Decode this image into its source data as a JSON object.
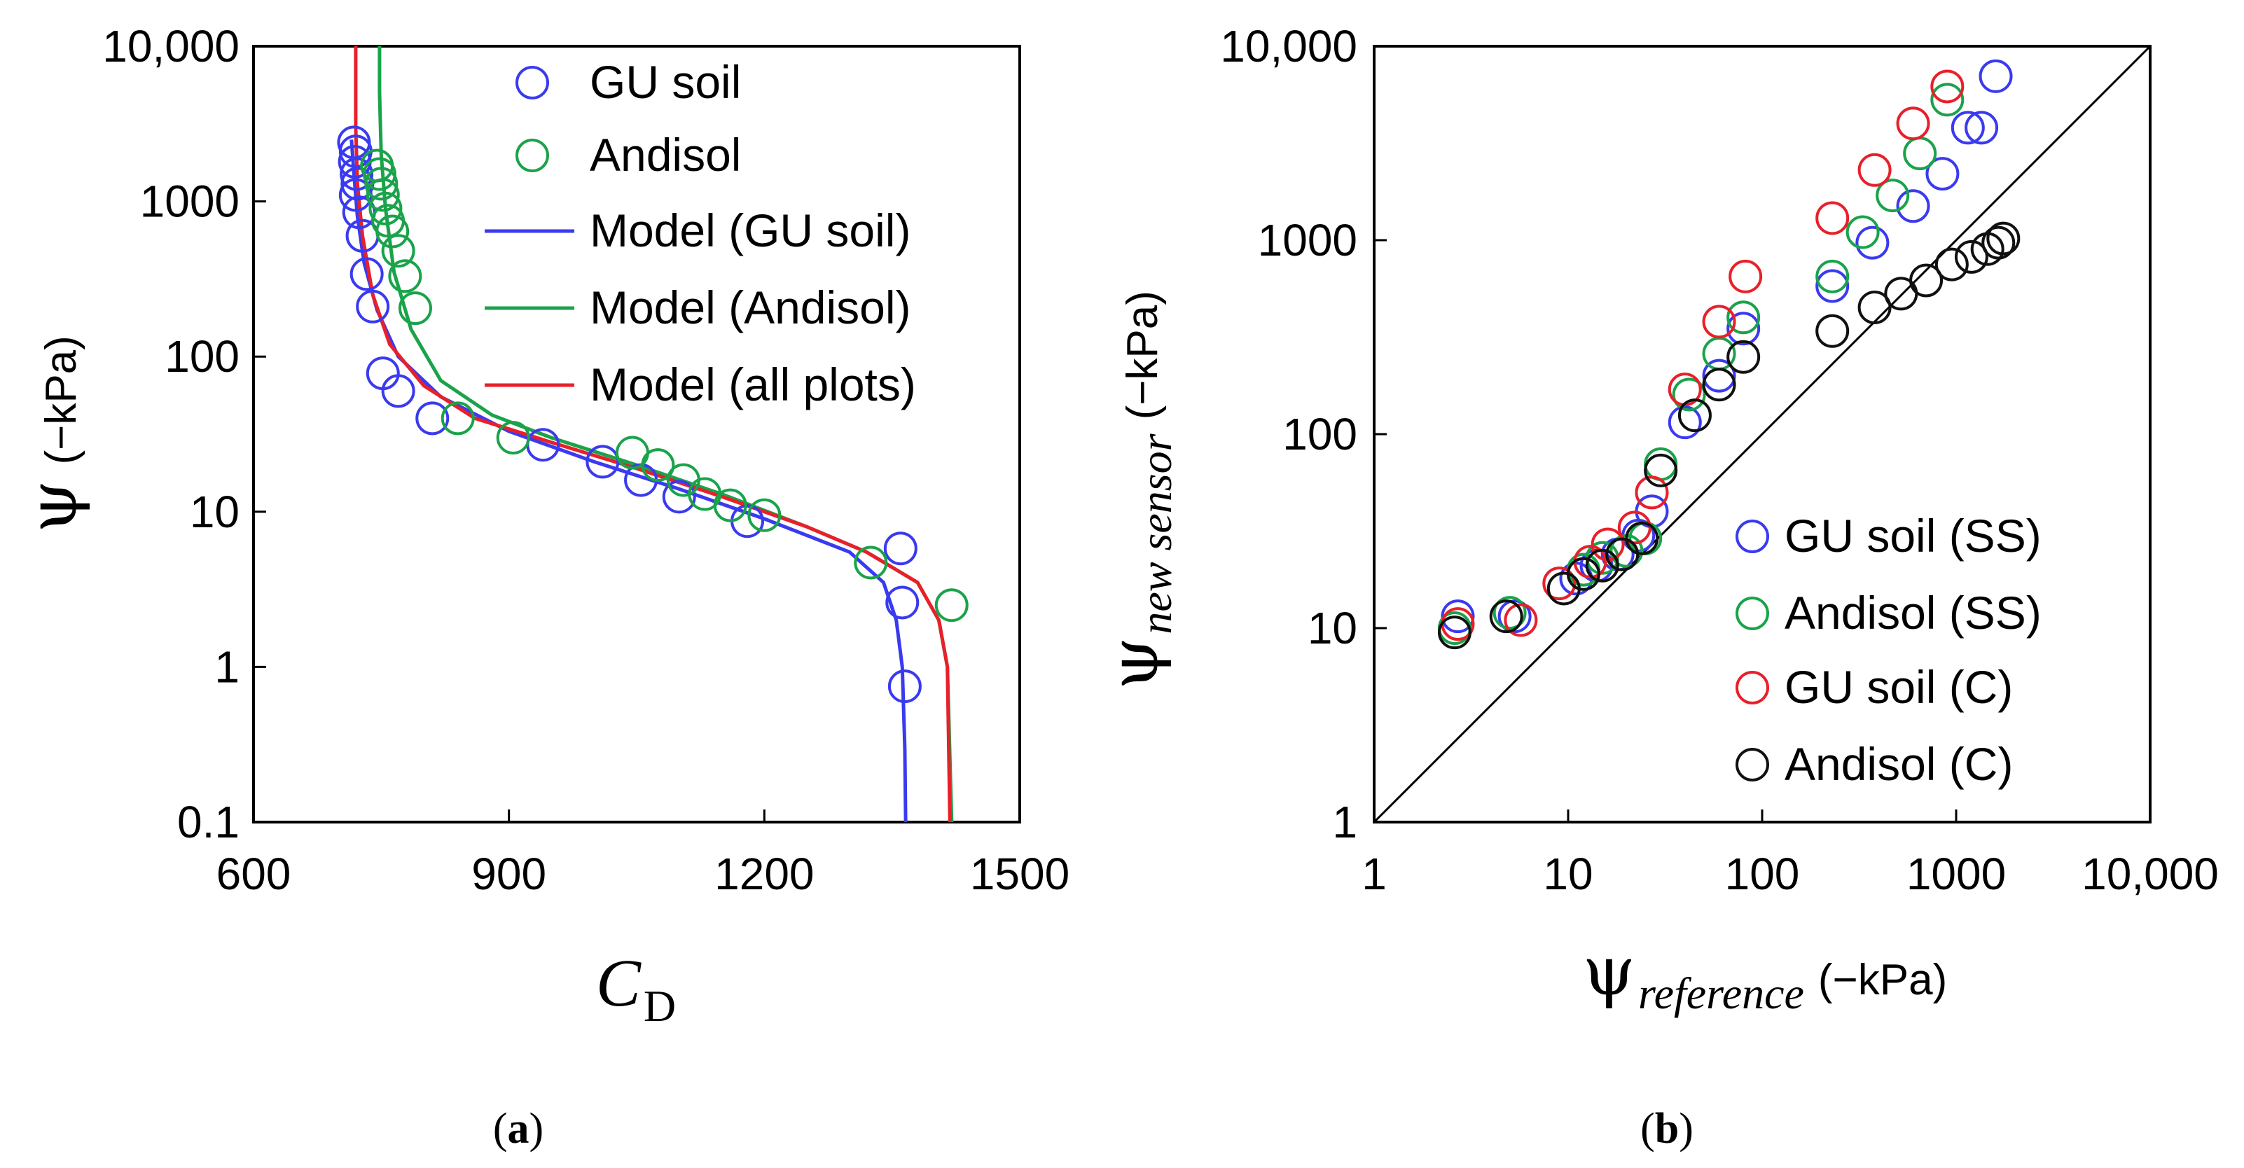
{
  "colors": {
    "blue": "#3a3af0",
    "green": "#1aa34a",
    "red": "#e8202a",
    "black": "#111111"
  },
  "panel_a": {
    "caption": {
      "open": "(",
      "letter": "a",
      "close": ")"
    },
    "xlabel": {
      "main": "C",
      "sub": "D"
    },
    "ylabel": {
      "symbol": "ψ",
      "unit": "(−kPa)"
    },
    "x_ticks": [
      600,
      900,
      1200,
      1500
    ],
    "x_tick_labels": [
      "600",
      "900",
      "1200",
      "1500"
    ],
    "y_ticks": [
      0.1,
      1,
      10,
      100,
      1000,
      10000
    ],
    "y_tick_labels": [
      "0.1",
      "1",
      "10",
      "100",
      "1000",
      "10,000"
    ],
    "legend": [
      "GU soil",
      "Andisol",
      "Model (GU soil)",
      "Model (Andisol)",
      "Model (all plots)"
    ]
  },
  "panel_b": {
    "caption": {
      "open": "(",
      "letter": "b",
      "close": ")"
    },
    "xlabel": {
      "symbol": "ψ",
      "sub": "reference",
      "unit": "(−kPa)"
    },
    "ylabel": {
      "symbol": "ψ",
      "sub": "new sensor",
      "unit": "(−kPa)"
    },
    "x_tick_labels": [
      "1",
      "10",
      "100",
      "1000",
      "10,000"
    ],
    "y_tick_labels": [
      "1",
      "10",
      "100",
      "1000",
      "10,000"
    ],
    "legend": [
      "GU soil (SS)",
      "Andisol (SS)",
      "GU soil (C)",
      "Andisol (C)"
    ]
  },
  "chart_data": [
    {
      "type": "scatter",
      "panel": "a",
      "xlabel": "C_D",
      "ylabel": "ψ (−kPa)",
      "xlim": [
        600,
        1500
      ],
      "ylim": [
        0.1,
        10000
      ],
      "yscale": "log",
      "series": [
        {
          "name": "GU soil",
          "kind": "scatter",
          "color": "blue",
          "x": [
            718,
            720,
            719,
            721,
            722,
            720,
            724,
            728,
            733,
            740,
            752,
            770,
            810,
            940,
            1010,
            1055,
            1100,
            1180,
            1360,
            1362,
            1365
          ],
          "y": [
            2400,
            2100,
            1800,
            1500,
            1300,
            1100,
            850,
            600,
            340,
            210,
            78,
            60,
            40,
            27,
            21,
            16,
            12.5,
            8.7,
            5.8,
            2.6,
            0.75
          ]
        },
        {
          "name": "Andisol",
          "kind": "scatter",
          "color": "green",
          "x": [
            745,
            748,
            750,
            752,
            755,
            758,
            763,
            770,
            778,
            790,
            840,
            905,
            1045,
            1075,
            1105,
            1130,
            1160,
            1200,
            1325,
            1420
          ],
          "y": [
            1700,
            1500,
            1300,
            1100,
            900,
            750,
            640,
            480,
            330,
            205,
            40,
            30,
            24,
            20,
            16,
            13,
            11,
            9.5,
            4.7,
            2.5
          ]
        },
        {
          "name": "Model (GU soil)",
          "kind": "line",
          "color": "blue",
          "x": [
            715,
            718,
            722,
            730,
            745,
            770,
            820,
            900,
            1000,
            1100,
            1200,
            1300,
            1340,
            1355,
            1362,
            1365,
            1366
          ],
          "y": [
            2500,
            1500,
            800,
            400,
            200,
            100,
            55,
            33,
            21,
            14,
            9,
            5.5,
            3.5,
            2.0,
            1.0,
            0.3,
            0.1
          ]
        },
        {
          "name": "Model (Andisol)",
          "kind": "line",
          "color": "green",
          "x": [
            748,
            748,
            750,
            755,
            765,
            785,
            820,
            880,
            950,
            1050,
            1150,
            1250,
            1320,
            1380,
            1405,
            1415,
            1420
          ],
          "y": [
            10000,
            5000,
            2000,
            900,
            350,
            150,
            70,
            42,
            30,
            20,
            13,
            8,
            5.5,
            3.5,
            2.0,
            1.0,
            0.1
          ]
        },
        {
          "name": "Model (all plots)",
          "kind": "line",
          "color": "red",
          "x": [
            720,
            720,
            722,
            728,
            740,
            760,
            800,
            860,
            950,
            1050,
            1150,
            1250,
            1320,
            1380,
            1405,
            1415,
            1418
          ],
          "y": [
            10000,
            3000,
            1300,
            600,
            250,
            120,
            65,
            40,
            28,
            19,
            12.5,
            8,
            5.5,
            3.5,
            2.0,
            1.0,
            0.1
          ]
        }
      ]
    },
    {
      "type": "scatter",
      "panel": "b",
      "xlabel": "ψ_reference (−kPa)",
      "ylabel": "ψ_new sensor (−kPa)",
      "xlim": [
        1,
        10000
      ],
      "ylim": [
        1,
        10000
      ],
      "xscale": "log",
      "yscale": "log",
      "reference_line": "1:1",
      "series": [
        {
          "name": "GU soil (SS)",
          "color": "blue",
          "x": [
            2.7,
            5.3,
            11,
            14,
            18,
            23,
            27,
            40,
            60,
            80,
            230,
            370,
            600,
            850,
            1150,
            1350,
            1600
          ],
          "y": [
            11.5,
            11.5,
            18,
            21,
            24,
            30,
            40,
            115,
            200,
            350,
            580,
            970,
            1500,
            2200,
            3800,
            3800,
            7000
          ]
        },
        {
          "name": "Andisol (SS)",
          "color": "green",
          "x": [
            2.6,
            5,
            12,
            15,
            20,
            25,
            30,
            42,
            60,
            80,
            230,
            330,
            470,
            650,
            900
          ],
          "y": [
            10,
            12,
            20,
            23,
            25,
            29,
            70,
            160,
            260,
            400,
            650,
            1100,
            1700,
            2800,
            5300
          ]
        },
        {
          "name": "GU soil (C)",
          "color": "red",
          "x": [
            2.7,
            5.7,
            9,
            13,
            16,
            22,
            27,
            40,
            60,
            82,
            230,
            380,
            600,
            900
          ],
          "y": [
            10.5,
            11,
            17,
            22,
            27,
            33,
            50,
            170,
            380,
            650,
            1300,
            2300,
            4000,
            6200
          ]
        },
        {
          "name": "Andisol (C)",
          "color": "black",
          "x": [
            2.6,
            4.8,
            9.5,
            12,
            15,
            19,
            24,
            30,
            45,
            60,
            80,
            230,
            380,
            520,
            700,
            950,
            1200,
            1450,
            1650,
            1750
          ],
          "y": [
            9.5,
            11.5,
            16,
            19,
            21,
            24,
            29,
            65,
            125,
            180,
            250,
            340,
            450,
            530,
            620,
            750,
            820,
            900,
            970,
            1020
          ]
        }
      ]
    }
  ]
}
